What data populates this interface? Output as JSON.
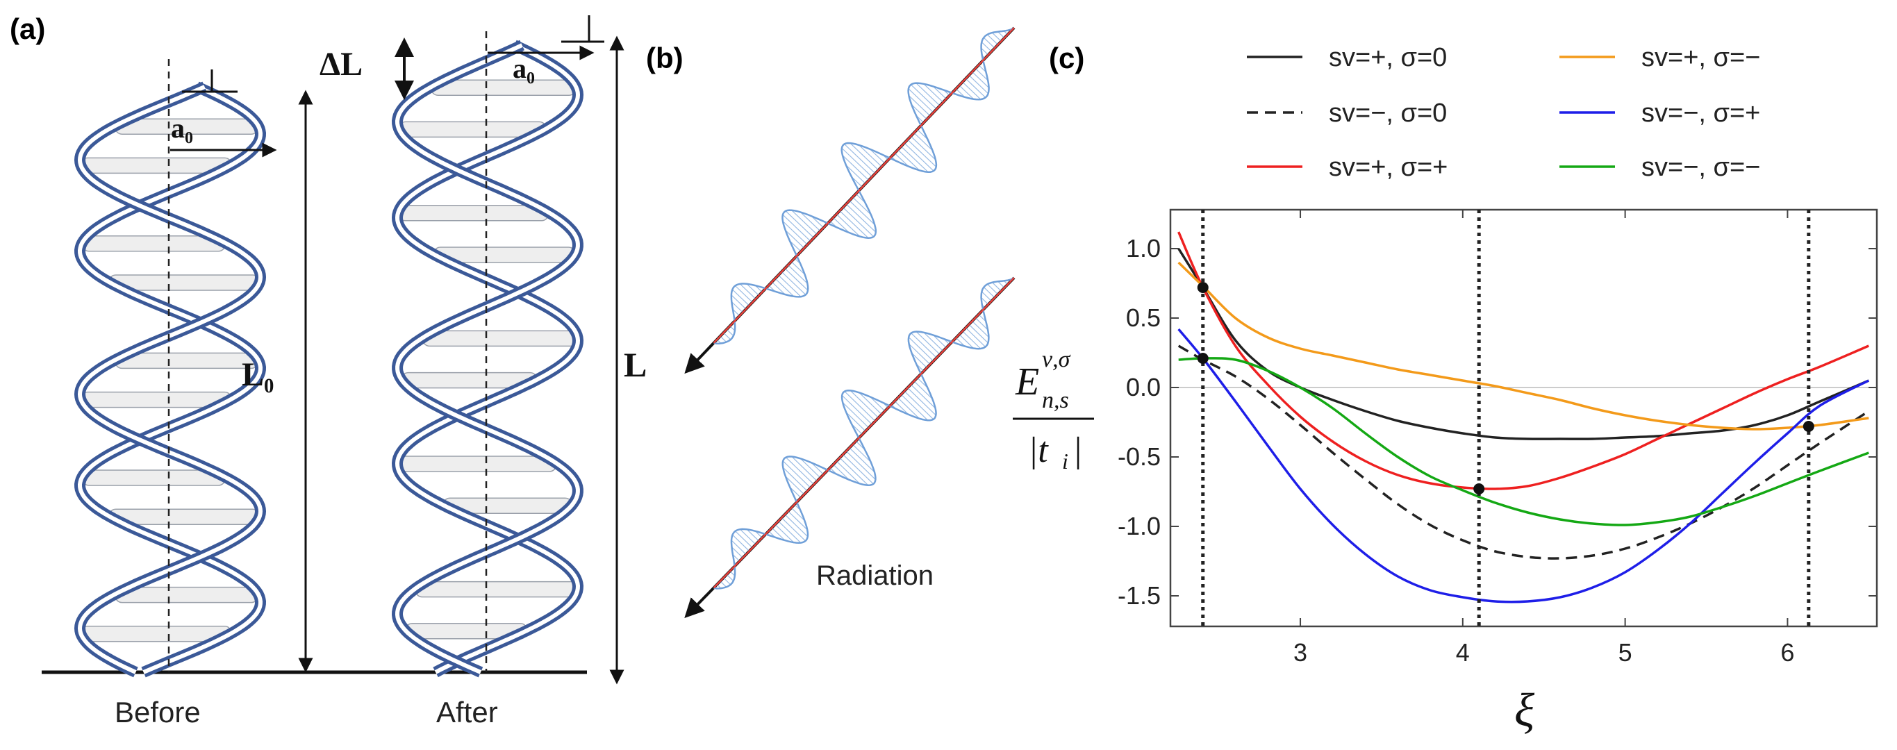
{
  "panels": {
    "a": {
      "label": "(a)",
      "dimension_labels": {
        "a0_left": "a₀",
        "a0_right": "a₀",
        "L0": "L₀",
        "L": "L",
        "delta_L": "ΔL"
      },
      "captions": {
        "before": "Before",
        "after": "After"
      }
    },
    "b": {
      "label": "(b)",
      "caption": "Radiation"
    },
    "c": {
      "label": "(c)"
    }
  },
  "colors": {
    "helix": "#4a6aa8",
    "helix_dark": "#3b5998",
    "rung_fill": "#eeeeee",
    "sv_plus_sigma_0": "#222222",
    "sv_minus_sigma_0": "#222222",
    "sv_plus_sigma_plus": "#ee2020",
    "sv_plus_sigma_minus": "#f39a1a",
    "sv_minus_sigma_plus": "#1e1ee8",
    "sv_minus_sigma_minus": "#14a814",
    "wave_blue": "#6f9fd8",
    "wave_red": "#e8403a"
  },
  "chart_data": {
    "type": "line",
    "xlabel": "ξ",
    "ylabel_main": "E",
    "ylabel_superscript": "ν,σ",
    "ylabel_subscript": "n,s",
    "ylabel_denominator": "|t",
    "ylabel_denominator_subscript": "i",
    "ylabel_denominator_close": "|",
    "xlim": [
      2.2,
      6.55
    ],
    "ylim": [
      -1.72,
      1.28
    ],
    "xticks": [
      3,
      4,
      5,
      6
    ],
    "yticks": [
      1.0,
      0.5,
      0.0,
      -0.5,
      -1.0,
      -1.5
    ],
    "ytick_labels": [
      "1.0",
      "0.5",
      "0.0",
      "-0.5",
      "-1.0",
      "-1.5"
    ],
    "vertical_dotted_lines": [
      2.4,
      4.1,
      6.13
    ],
    "marked_points": [
      {
        "x": 2.4,
        "y": 0.72
      },
      {
        "x": 2.4,
        "y": 0.21
      },
      {
        "x": 4.1,
        "y": -0.73
      },
      {
        "x": 6.13,
        "y": -0.28
      }
    ],
    "x": [
      2.25,
      2.4,
      2.6,
      2.8,
      3.0,
      3.2,
      3.4,
      3.6,
      3.8,
      4.0,
      4.2,
      4.4,
      4.6,
      4.8,
      5.0,
      5.2,
      5.4,
      5.6,
      5.8,
      6.0,
      6.2,
      6.5
    ],
    "series": [
      {
        "name": "sv=+, σ=0",
        "legend": "sv=+, σ=0",
        "style": "solid",
        "color_key": "sv_plus_sigma_0",
        "values": [
          1.0,
          0.72,
          0.34,
          0.12,
          0.0,
          -0.09,
          -0.17,
          -0.24,
          -0.29,
          -0.33,
          -0.36,
          -0.37,
          -0.37,
          -0.37,
          -0.36,
          -0.35,
          -0.33,
          -0.31,
          -0.27,
          -0.2,
          -0.1,
          0.05
        ]
      },
      {
        "name": "sv=−, σ=0",
        "legend": "sv=−, σ=0",
        "style": "dashed",
        "color_key": "sv_minus_sigma_0",
        "values": [
          0.3,
          0.2,
          0.08,
          -0.08,
          -0.27,
          -0.47,
          -0.66,
          -0.84,
          -0.99,
          -1.1,
          -1.18,
          -1.22,
          -1.23,
          -1.21,
          -1.16,
          -1.08,
          -0.98,
          -0.86,
          -0.72,
          -0.56,
          -0.4,
          -0.17
        ]
      },
      {
        "name": "sv=+, σ=+",
        "legend": "sv=+, σ=+",
        "style": "solid",
        "color_key": "sv_plus_sigma_plus",
        "values": [
          1.12,
          0.72,
          0.3,
          0.02,
          -0.21,
          -0.39,
          -0.53,
          -0.63,
          -0.69,
          -0.72,
          -0.73,
          -0.71,
          -0.65,
          -0.57,
          -0.48,
          -0.37,
          -0.26,
          -0.15,
          -0.04,
          0.06,
          0.15,
          0.3
        ]
      },
      {
        "name": "sv=+, σ=−",
        "legend": "sv=+, σ=−",
        "style": "solid",
        "color_key": "sv_plus_sigma_minus",
        "values": [
          0.9,
          0.73,
          0.5,
          0.36,
          0.28,
          0.23,
          0.18,
          0.13,
          0.09,
          0.05,
          0.01,
          -0.04,
          -0.09,
          -0.15,
          -0.2,
          -0.24,
          -0.27,
          -0.29,
          -0.3,
          -0.29,
          -0.27,
          -0.22
        ]
      },
      {
        "name": "sv=−, σ=+",
        "legend": "sv=−, σ=+",
        "style": "solid",
        "color_key": "sv_minus_sigma_plus",
        "values": [
          0.42,
          0.21,
          -0.1,
          -0.42,
          -0.73,
          -0.99,
          -1.2,
          -1.36,
          -1.46,
          -1.51,
          -1.54,
          -1.54,
          -1.51,
          -1.44,
          -1.33,
          -1.17,
          -0.98,
          -0.76,
          -0.54,
          -0.33,
          -0.13,
          0.05
        ]
      },
      {
        "name": "sv=−, σ=−",
        "legend": "sv=−, σ=−",
        "style": "solid",
        "color_key": "sv_minus_sigma_minus",
        "values": [
          0.2,
          0.21,
          0.2,
          0.12,
          0.0,
          -0.15,
          -0.33,
          -0.5,
          -0.64,
          -0.74,
          -0.83,
          -0.9,
          -0.95,
          -0.98,
          -0.99,
          -0.97,
          -0.93,
          -0.86,
          -0.78,
          -0.69,
          -0.6,
          -0.47
        ]
      }
    ]
  }
}
